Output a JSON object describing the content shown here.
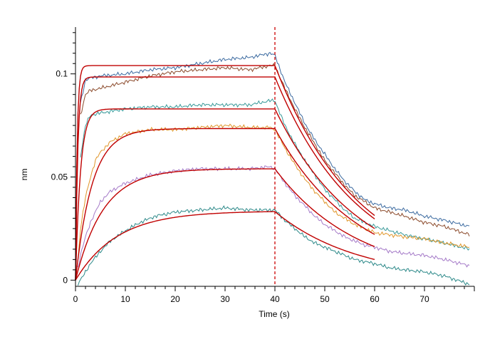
{
  "chart_data": {
    "type": "line",
    "title": "",
    "xlabel": "Time (s)",
    "ylabel": "nm",
    "xlim": [
      0,
      80
    ],
    "ylim": [
      -0.003,
      0.122
    ],
    "x_ticks": [
      0,
      10,
      20,
      30,
      40,
      50,
      60,
      70
    ],
    "x_tick_labels": [
      "0",
      "10",
      "20",
      "30",
      "40",
      "50",
      "60",
      "70"
    ],
    "y_ticks": [
      0,
      0.05,
      0.1
    ],
    "y_tick_labels": [
      "0",
      "0.05",
      "0.1"
    ],
    "grid": false,
    "legend": "none",
    "marker_line": {
      "x": 40,
      "style": "dashed",
      "color": "#cc0000"
    },
    "fit_color": "#c00000",
    "fit_end_x": 60,
    "series": [
      {
        "color": "#3b6aa0",
        "points": [
          [
            1,
            0.086
          ],
          [
            2,
            0.097
          ],
          [
            3,
            0.098
          ],
          [
            5,
            0.099
          ],
          [
            10,
            0.1
          ],
          [
            15,
            0.102
          ],
          [
            20,
            0.103
          ],
          [
            25,
            0.105
          ],
          [
            30,
            0.107
          ],
          [
            35,
            0.108
          ],
          [
            39,
            0.11
          ],
          [
            40,
            0.109
          ],
          [
            42,
            0.096
          ],
          [
            44,
            0.086
          ],
          [
            46,
            0.076
          ],
          [
            48,
            0.068
          ],
          [
            50,
            0.061
          ],
          [
            52,
            0.054
          ],
          [
            54,
            0.048
          ],
          [
            56,
            0.043
          ],
          [
            58,
            0.039
          ],
          [
            60,
            0.037
          ],
          [
            63,
            0.035
          ],
          [
            66,
            0.034
          ],
          [
            70,
            0.031
          ],
          [
            74,
            0.029
          ],
          [
            79,
            0.026
          ]
        ],
        "fit": {
          "plateau": 0.104,
          "kon": 3.0,
          "koff": 0.06
        }
      },
      {
        "color": "#8b4a2b",
        "points": [
          [
            1,
            0.08
          ],
          [
            2,
            0.09
          ],
          [
            3,
            0.092
          ],
          [
            5,
            0.093
          ],
          [
            10,
            0.096
          ],
          [
            15,
            0.099
          ],
          [
            20,
            0.101
          ],
          [
            25,
            0.102
          ],
          [
            30,
            0.103
          ],
          [
            35,
            0.102
          ],
          [
            39,
            0.104
          ],
          [
            40,
            0.104
          ],
          [
            42,
            0.093
          ],
          [
            44,
            0.083
          ],
          [
            46,
            0.074
          ],
          [
            48,
            0.066
          ],
          [
            50,
            0.058
          ],
          [
            52,
            0.052
          ],
          [
            54,
            0.046
          ],
          [
            56,
            0.041
          ],
          [
            58,
            0.038
          ],
          [
            60,
            0.035
          ],
          [
            63,
            0.033
          ],
          [
            66,
            0.031
          ],
          [
            70,
            0.028
          ],
          [
            74,
            0.026
          ],
          [
            79,
            0.022
          ]
        ],
        "fit": {
          "plateau": 0.0985,
          "kon": 2.2,
          "koff": 0.06
        }
      },
      {
        "color": "#3a9a9a",
        "points": [
          [
            1,
            0.06
          ],
          [
            2,
            0.075
          ],
          [
            3,
            0.08
          ],
          [
            5,
            0.081
          ],
          [
            10,
            0.083
          ],
          [
            15,
            0.084
          ],
          [
            20,
            0.084
          ],
          [
            25,
            0.085
          ],
          [
            30,
            0.085
          ],
          [
            35,
            0.085
          ],
          [
            39,
            0.087
          ],
          [
            40,
            0.087
          ],
          [
            42,
            0.075
          ],
          [
            44,
            0.066
          ],
          [
            46,
            0.058
          ],
          [
            48,
            0.051
          ],
          [
            50,
            0.044
          ],
          [
            52,
            0.039
          ],
          [
            54,
            0.034
          ],
          [
            56,
            0.03
          ],
          [
            58,
            0.028
          ],
          [
            60,
            0.026
          ],
          [
            63,
            0.024
          ],
          [
            66,
            0.022
          ],
          [
            70,
            0.02
          ],
          [
            74,
            0.018
          ],
          [
            79,
            0.015
          ]
        ],
        "fit": {
          "plateau": 0.083,
          "kon": 1.0,
          "koff": 0.06
        }
      },
      {
        "color": "#e0962a",
        "points": [
          [
            0.5,
            0.01
          ],
          [
            1,
            0.025
          ],
          [
            2,
            0.04
          ],
          [
            3,
            0.05
          ],
          [
            4,
            0.058
          ],
          [
            5,
            0.062
          ],
          [
            7,
            0.067
          ],
          [
            10,
            0.071
          ],
          [
            15,
            0.073
          ],
          [
            20,
            0.073
          ],
          [
            25,
            0.074
          ],
          [
            30,
            0.075
          ],
          [
            35,
            0.074
          ],
          [
            39,
            0.074
          ],
          [
            40,
            0.073
          ],
          [
            42,
            0.064
          ],
          [
            44,
            0.056
          ],
          [
            46,
            0.049
          ],
          [
            48,
            0.043
          ],
          [
            50,
            0.038
          ],
          [
            52,
            0.033
          ],
          [
            54,
            0.03
          ],
          [
            56,
            0.027
          ],
          [
            58,
            0.025
          ],
          [
            60,
            0.023
          ],
          [
            63,
            0.022
          ],
          [
            66,
            0.021
          ],
          [
            70,
            0.02
          ],
          [
            74,
            0.018
          ],
          [
            79,
            0.016
          ]
        ],
        "fit": {
          "plateau": 0.0735,
          "kon": 0.3,
          "koff": 0.06
        }
      },
      {
        "color": "#a57ac8",
        "points": [
          [
            0.5,
            0.006
          ],
          [
            1,
            0.012
          ],
          [
            2,
            0.021
          ],
          [
            3,
            0.028
          ],
          [
            4,
            0.033
          ],
          [
            5,
            0.038
          ],
          [
            7,
            0.043
          ],
          [
            10,
            0.047
          ],
          [
            15,
            0.051
          ],
          [
            20,
            0.053
          ],
          [
            25,
            0.054
          ],
          [
            30,
            0.054
          ],
          [
            35,
            0.054
          ],
          [
            39,
            0.055
          ],
          [
            40,
            0.054
          ],
          [
            42,
            0.047
          ],
          [
            44,
            0.041
          ],
          [
            46,
            0.036
          ],
          [
            48,
            0.031
          ],
          [
            50,
            0.027
          ],
          [
            52,
            0.024
          ],
          [
            54,
            0.021
          ],
          [
            56,
            0.019
          ],
          [
            58,
            0.017
          ],
          [
            60,
            0.016
          ],
          [
            63,
            0.014
          ],
          [
            66,
            0.013
          ],
          [
            70,
            0.012
          ],
          [
            74,
            0.01
          ],
          [
            79,
            0.007
          ]
        ],
        "fit": {
          "plateau": 0.054,
          "kon": 0.18,
          "koff": 0.06
        }
      },
      {
        "color": "#2e8a8a",
        "points": [
          [
            0.5,
            -0.002
          ],
          [
            1,
            0.0
          ],
          [
            2,
            0.004
          ],
          [
            3,
            0.008
          ],
          [
            5,
            0.014
          ],
          [
            7,
            0.019
          ],
          [
            10,
            0.024
          ],
          [
            13,
            0.028
          ],
          [
            16,
            0.031
          ],
          [
            20,
            0.033
          ],
          [
            25,
            0.034
          ],
          [
            30,
            0.035
          ],
          [
            35,
            0.034
          ],
          [
            39,
            0.034
          ],
          [
            40,
            0.034
          ],
          [
            42,
            0.029
          ],
          [
            44,
            0.025
          ],
          [
            46,
            0.021
          ],
          [
            48,
            0.018
          ],
          [
            50,
            0.016
          ],
          [
            52,
            0.014
          ],
          [
            54,
            0.012
          ],
          [
            56,
            0.01
          ],
          [
            58,
            0.009
          ],
          [
            60,
            0.008
          ],
          [
            63,
            0.006
          ],
          [
            66,
            0.005
          ],
          [
            70,
            0.004
          ],
          [
            74,
            0.002
          ],
          [
            79,
            -0.002
          ]
        ],
        "fit": {
          "plateau": 0.0335,
          "kon": 0.12,
          "koff": 0.06
        }
      }
    ]
  }
}
